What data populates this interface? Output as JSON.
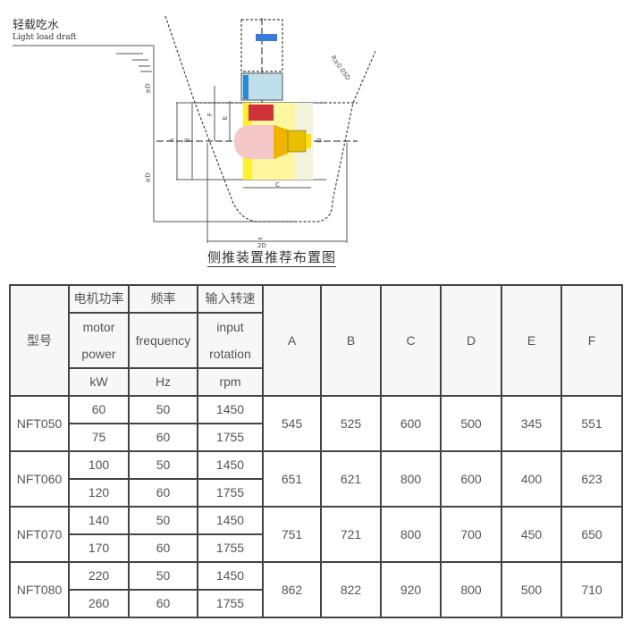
{
  "diagram": {
    "draft_label_cn": "轻载吃水",
    "draft_label_en": "Light load draft",
    "caption": "侧推装置推荐布置图",
    "dimension_labels": [
      "≥D",
      "≥D",
      "A",
      "B",
      "C",
      "D",
      "E",
      "F",
      "≈ 2D",
      "R≥0.05D"
    ]
  },
  "table": {
    "header": {
      "model": "型号",
      "power_cn": "电机功率",
      "power_en_1": "motor",
      "power_en_2": "power",
      "power_unit": "kW",
      "freq_cn": "频率",
      "freq_en": "frequency",
      "freq_unit": "Hz",
      "speed_cn": "输入转速",
      "speed_en_1": "input",
      "speed_en_2": "rotation",
      "speed_unit": "rpm",
      "dims": [
        "A",
        "B",
        "C",
        "D",
        "E",
        "F"
      ]
    },
    "rows": [
      {
        "model": "NFT050",
        "variants": [
          {
            "power": "60",
            "freq": "50",
            "rpm": "1450"
          },
          {
            "power": "75",
            "freq": "60",
            "rpm": "1755"
          }
        ],
        "dims": [
          "545",
          "525",
          "600",
          "500",
          "345",
          "551"
        ]
      },
      {
        "model": "NFT060",
        "variants": [
          {
            "power": "100",
            "freq": "50",
            "rpm": "1450"
          },
          {
            "power": "120",
            "freq": "60",
            "rpm": "1755"
          }
        ],
        "dims": [
          "651",
          "621",
          "800",
          "600",
          "400",
          "623"
        ]
      },
      {
        "model": "NFT070",
        "variants": [
          {
            "power": "140",
            "freq": "50",
            "rpm": "1450"
          },
          {
            "power": "170",
            "freq": "60",
            "rpm": "1755"
          }
        ],
        "dims": [
          "751",
          "721",
          "800",
          "700",
          "450",
          "650"
        ]
      },
      {
        "model": "NFT080",
        "variants": [
          {
            "power": "220",
            "freq": "50",
            "rpm": "1450"
          },
          {
            "power": "260",
            "freq": "60",
            "rpm": "1755"
          }
        ],
        "dims": [
          "862",
          "822",
          "920",
          "800",
          "500",
          "710"
        ]
      }
    ]
  }
}
